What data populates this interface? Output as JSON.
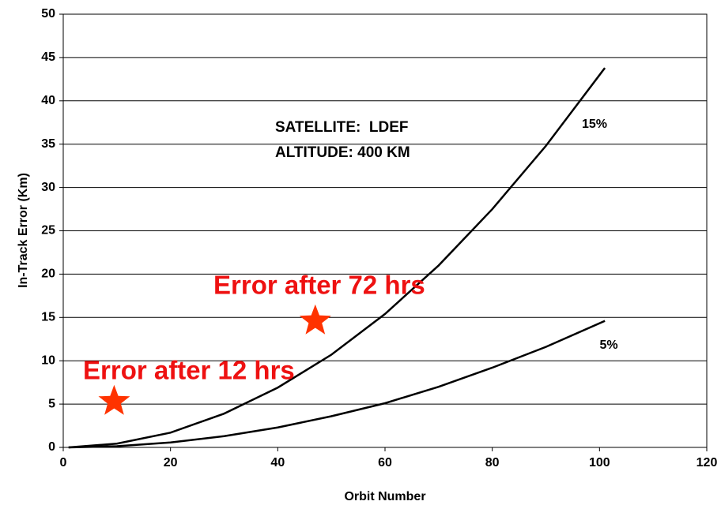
{
  "chart_data": {
    "type": "line",
    "x_label": "Orbit Number",
    "y_label": "In-Track Error (Km)",
    "x": [
      1,
      10,
      20,
      30,
      40,
      50,
      60,
      70,
      80,
      90,
      101
    ],
    "series": [
      {
        "name": "15%",
        "color": "#000000",
        "values": [
          0,
          0.43,
          1.7,
          3.9,
          6.9,
          10.7,
          15.4,
          21.0,
          27.5,
          34.8,
          43.8
        ]
      },
      {
        "name": "5%",
        "color": "#000000",
        "values": [
          0,
          0.14,
          0.57,
          1.3,
          2.3,
          3.6,
          5.1,
          7.0,
          9.2,
          11.6,
          14.6
        ]
      }
    ],
    "markers": [
      {
        "x": 9.5,
        "y": 5.3,
        "color": "#ff3300"
      },
      {
        "x": 47,
        "y": 14.6,
        "color": "#ff3300"
      }
    ],
    "annotations": [
      {
        "text": "SATELLITE:  LDEF",
        "color": "#000000"
      },
      {
        "text": "ALTITUDE: 400 KM",
        "color": "#000000"
      },
      {
        "text": "Error after 72 hrs",
        "color": "#ee1111"
      },
      {
        "text": "Error after 12 hrs",
        "color": "#ee1111"
      }
    ],
    "xlim": [
      0,
      120
    ],
    "xticks": [
      0,
      20,
      40,
      60,
      80,
      100,
      120
    ],
    "ylim": [
      0,
      50
    ],
    "yticks": [
      0,
      5,
      10,
      15,
      20,
      25,
      30,
      35,
      40,
      45,
      50
    ],
    "grid": true
  }
}
